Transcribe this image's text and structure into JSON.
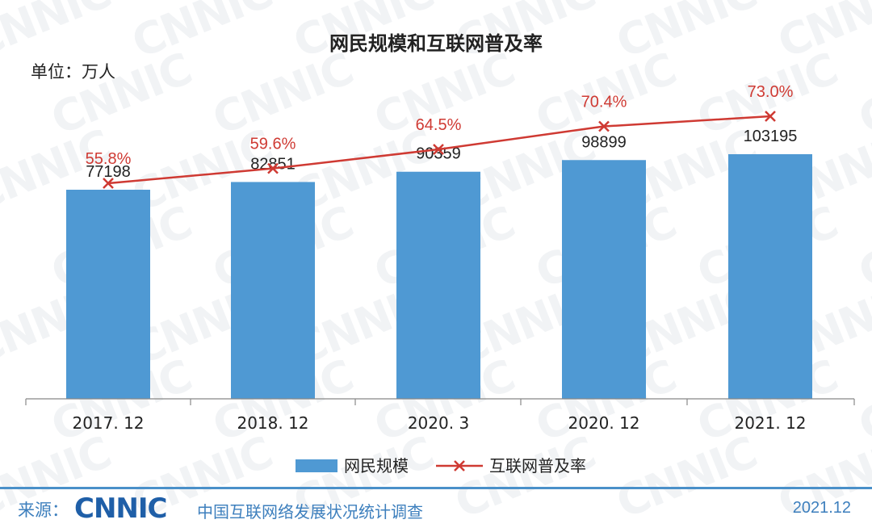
{
  "watermark": "CNNIC",
  "chart_data": {
    "type": "bar",
    "title": "网民规模和互联网普及率",
    "unit_label": "单位：万人",
    "categories": [
      "2017. 12",
      "2018. 12",
      "2020. 3",
      "2020. 12",
      "2021. 12"
    ],
    "series": [
      {
        "name": "网民规模",
        "type": "bar",
        "color": "#4f99d3",
        "values": [
          77198,
          82851,
          90359,
          98899,
          103195
        ]
      },
      {
        "name": "互联网普及率",
        "type": "line",
        "color": "#cf3a33",
        "values": [
          55.8,
          59.6,
          64.5,
          70.4,
          73.0
        ],
        "labels": [
          "55.8%",
          "59.6%",
          "64.5%",
          "70.4%",
          "73.0%"
        ]
      }
    ],
    "legend_position": "bottom",
    "grid": false
  },
  "footer": {
    "source_label": "来源：",
    "logo": "CNNIC",
    "source_text": "中国互联网络发展状况统计调查",
    "date": "2021.12"
  }
}
